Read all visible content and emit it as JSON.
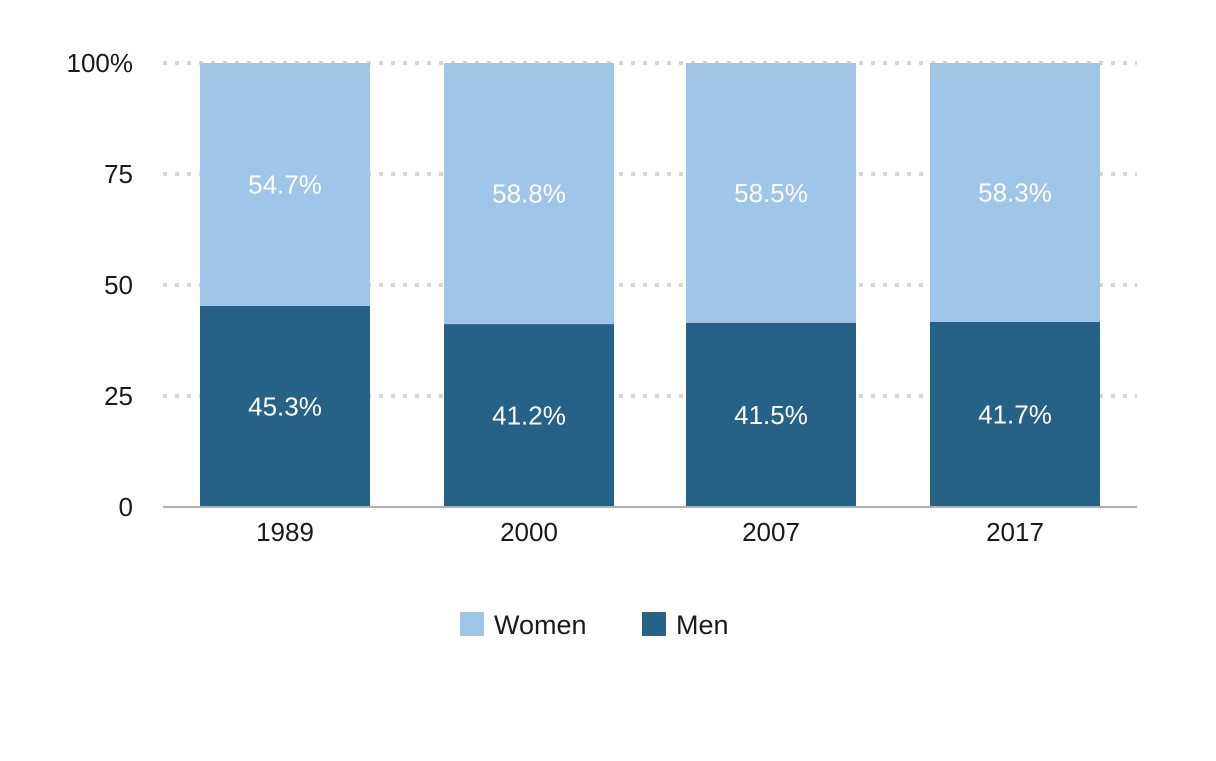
{
  "chart_data": {
    "type": "bar",
    "stacked": true,
    "categories": [
      "1989",
      "2000",
      "2007",
      "2017"
    ],
    "series": [
      {
        "name": "Men",
        "values": [
          45.3,
          41.2,
          41.5,
          41.7
        ],
        "labels": [
          "45.3%",
          "41.2%",
          "41.5%",
          "41.7%"
        ],
        "color": "#266285"
      },
      {
        "name": "Women",
        "values": [
          54.7,
          58.8,
          58.5,
          58.3
        ],
        "labels": [
          "54.7%",
          "58.8%",
          "58.5%",
          "58.3%"
        ],
        "color": "#9fc5e8"
      }
    ],
    "y_ticks": [
      {
        "value": 0,
        "label": "0"
      },
      {
        "value": 25,
        "label": "25"
      },
      {
        "value": 50,
        "label": "50"
      },
      {
        "value": 75,
        "label": "75"
      },
      {
        "value": 100,
        "label": "100%"
      }
    ],
    "ylim": [
      0,
      100
    ],
    "grid": true,
    "legend_placement": "bottom-center",
    "legend_order": [
      "Women",
      "Men"
    ]
  }
}
